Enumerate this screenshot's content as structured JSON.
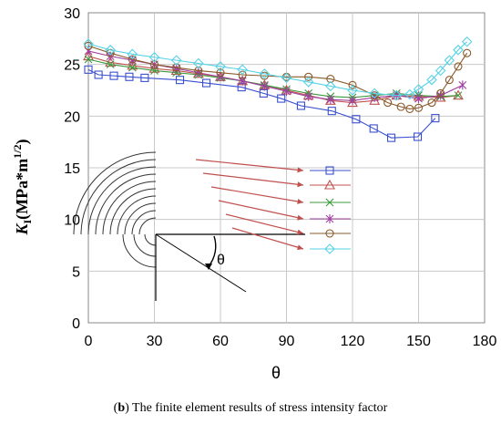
{
  "caption": {
    "prefix": "(",
    "letter": "b",
    "suffix": ") The finite element results of stress intensity factor"
  },
  "chart_data": {
    "type": "line",
    "xlabel": "θ",
    "ylabel": "K",
    "ylabel_sub": "I",
    "ylabel_unit": "(MPa*m",
    "ylabel_sup": "1/2",
    "ylabel_close": ")",
    "xlim": [
      0,
      180
    ],
    "ylim": [
      0,
      30
    ],
    "xticks": [
      0,
      30,
      60,
      90,
      120,
      150,
      180
    ],
    "yticks": [
      0,
      5,
      10,
      15,
      20,
      25,
      30
    ],
    "grid": true,
    "inset_label": "θ",
    "series": [
      {
        "color": "#3a4fd0",
        "marker": "square",
        "x": [
          0,
          4.6,
          11.6,
          18.6,
          25.6,
          41.6,
          53.6,
          69.6,
          79.6,
          87.6,
          96.6,
          110.6,
          121.6,
          129.6,
          137.6,
          149.6,
          157.6
        ],
        "y": [
          24.5,
          24.0,
          23.9,
          23.8,
          23.7,
          23.5,
          23.2,
          22.8,
          22.2,
          21.7,
          21.0,
          20.5,
          19.7,
          18.8,
          17.9,
          18.0,
          19.8
        ]
      },
      {
        "color": "#c0504d",
        "marker": "triangle",
        "x": [
          0,
          10,
          20,
          30,
          40,
          50,
          60,
          70,
          80,
          90,
          100,
          110,
          120,
          130,
          140,
          150,
          160,
          168
        ],
        "y": [
          25.8,
          25.2,
          24.9,
          24.6,
          24.4,
          24.1,
          23.8,
          23.4,
          23.0,
          22.5,
          22.0,
          21.5,
          21.3,
          21.5,
          22.0,
          21.9,
          21.8,
          22.0
        ]
      },
      {
        "color": "#3b9a3b",
        "marker": "x",
        "x": [
          0,
          10,
          20,
          30,
          40,
          50,
          60,
          70,
          80,
          90,
          100,
          110,
          120,
          130,
          140,
          150,
          160,
          168
        ],
        "y": [
          25.5,
          25.0,
          24.7,
          24.4,
          24.2,
          24.0,
          23.7,
          23.4,
          23.0,
          22.6,
          22.2,
          21.9,
          21.8,
          22.0,
          22.2,
          22.0,
          21.9,
          22.0
        ]
      },
      {
        "color": "#a040a0",
        "marker": "star",
        "x": [
          0,
          10,
          20,
          30,
          40,
          50,
          60,
          70,
          80,
          90,
          100,
          110,
          120,
          130,
          140,
          150,
          160,
          170
        ],
        "y": [
          26.3,
          25.8,
          25.4,
          25.0,
          24.6,
          24.2,
          23.8,
          23.4,
          22.9,
          22.4,
          21.9,
          21.6,
          21.5,
          21.8,
          22.0,
          21.7,
          22.0,
          23.0
        ]
      },
      {
        "color": "#8a5a2b",
        "marker": "circle",
        "x": [
          0,
          10,
          20,
          30,
          40,
          50,
          60,
          70,
          80,
          90,
          100,
          110,
          120,
          130,
          136,
          142,
          146,
          150,
          156,
          160,
          164,
          168,
          172
        ],
        "y": [
          26.8,
          26.1,
          25.5,
          25.0,
          24.7,
          24.4,
          24.2,
          24.0,
          23.9,
          23.8,
          23.8,
          23.6,
          23.0,
          22.0,
          21.3,
          20.9,
          20.7,
          20.8,
          21.3,
          22.2,
          23.5,
          24.8,
          26.1
        ]
      },
      {
        "color": "#56d2e6",
        "marker": "diamond",
        "x": [
          0,
          10,
          20,
          30,
          40,
          50,
          60,
          70,
          80,
          90,
          100,
          110,
          120,
          130,
          140,
          146,
          150,
          156,
          160,
          164,
          168,
          172
        ],
        "y": [
          27.0,
          26.4,
          26.0,
          25.7,
          25.4,
          25.1,
          24.8,
          24.5,
          24.1,
          23.7,
          23.3,
          22.9,
          22.5,
          22.2,
          22.0,
          22.1,
          22.6,
          23.5,
          24.4,
          25.4,
          26.4,
          27.2
        ]
      }
    ]
  }
}
